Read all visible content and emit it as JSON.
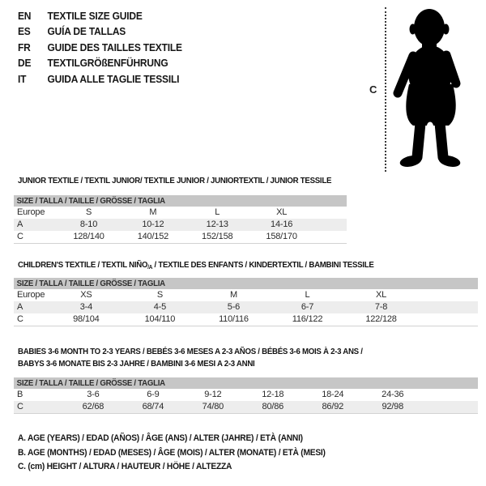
{
  "colors": {
    "background": "#ffffff",
    "header_bar_bg": "#c6c6c6",
    "alt_row_bg": "#ededed",
    "text": "#1b1b1b",
    "silhouette": "#000000",
    "dotted_line": "#3a3a3a"
  },
  "language_list": {
    "items": [
      {
        "code": "EN",
        "label": "TEXTILE SIZE GUIDE"
      },
      {
        "code": "ES",
        "label": "GUÍA DE TALLAS"
      },
      {
        "code": "FR",
        "label": "GUIDE DES TAILLES TEXTILE"
      },
      {
        "code": "DE",
        "label": "TEXTILGRÖßENFÜHRUNG"
      },
      {
        "code": "IT",
        "label": "GUIDA ALLE TAGLIE TESSILI"
      }
    ]
  },
  "figure": {
    "label": "C"
  },
  "sections": [
    {
      "id": "junior",
      "title_lines": [
        [
          {
            "text": "JUNIOR TEXTILE / TEXTIL JUNIOR/ TEXTILE JUNIOR / JUNIORTEXTIL / JUNIOR TESSILE",
            "sub": false
          }
        ]
      ],
      "size_bar": "SIZE / TALLA / TAILLE / GRÖSSE / TAGLIA",
      "columns": [
        "Europe",
        "S",
        "M",
        "L",
        "XL"
      ],
      "rows": [
        {
          "label": "A",
          "values": [
            "8-10",
            "10-12",
            "12-13",
            "14-16"
          ]
        },
        {
          "label": "C",
          "values": [
            "128/140",
            "140/152",
            "152/158",
            "158/170"
          ]
        }
      ]
    },
    {
      "id": "children",
      "title_lines": [
        [
          {
            "text": "CHILDREN'S TEXTILE / TEXTIL NIÑO",
            "sub": false
          },
          {
            "text": "/A",
            "sub": true
          },
          {
            "text": " / TEXTILE DES ENFANTS / KINDERTEXTIL / BAMBINI TESSILE",
            "sub": false
          }
        ]
      ],
      "size_bar": "SIZE / TALLA / TAILLE / GRÖSSE / TAGLIA",
      "columns": [
        "Europe",
        "XS",
        "S",
        "M",
        "L",
        "XL"
      ],
      "rows": [
        {
          "label": "A",
          "values": [
            "3-4",
            "4-5",
            "5-6",
            "6-7",
            "7-8"
          ]
        },
        {
          "label": "C",
          "values": [
            "98/104",
            "104/110",
            "110/116",
            "116/122",
            "122/128"
          ]
        }
      ]
    },
    {
      "id": "babies",
      "title_lines": [
        [
          {
            "text": "BABIES 3-6 MONTH TO 2-3 YEARS / BEBÉS 3-6 MESES A 2-3 AÑOS / BÉBÉS 3-6 MOIS À 2-3 ANS /",
            "sub": false
          }
        ],
        [
          {
            "text": "BABYS 3-6 MONATE BIS 2-3 JAHRE / BAMBINI 3-6 MESI A 2-3 ANNI",
            "sub": false
          }
        ]
      ],
      "size_bar": "SIZE / TALLA / TAILLE / GRÖSSE / TAGLIA",
      "columns": null,
      "rows": [
        {
          "label": "B",
          "values": [
            "3-6",
            "6-9",
            "9-12",
            "12-18",
            "18-24",
            "24-36"
          ]
        },
        {
          "label": "C",
          "values": [
            "62/68",
            "68/74",
            "74/80",
            "80/86",
            "86/92",
            "92/98"
          ]
        }
      ]
    }
  ],
  "footnotes": [
    "A. AGE (YEARS) / EDAD (AÑOS) / ÂGE (ANS) / ALTER (JAHRE) / ETÀ (ANNI)",
    "B. AGE (MONTHS) / EDAD (MESES) / ÂGE (MOIS) / ALTER (MONATE) / ETÀ (MESI)",
    "C. (cm) HEIGHT / ALTURA / HAUTEUR / HÖHE / ALTEZZA"
  ]
}
